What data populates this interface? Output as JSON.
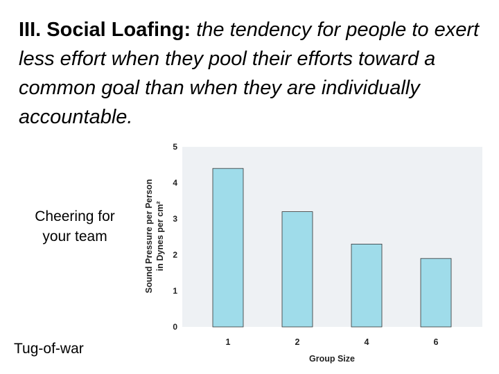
{
  "slide": {
    "title_lead": "III. Social Loafing:",
    "title_definition": "the tendency for people to exert less effort when they pool their efforts toward a common goal than when they are individually accountable.",
    "label_cheering": "Cheering for your team",
    "label_tug": "Tug-of-war"
  },
  "colors": {
    "bar_fill": "#9fdcea",
    "bar_stroke": "#333333",
    "plot_background": "#eef1f4"
  },
  "chart_data": {
    "type": "bar",
    "categories": [
      "1",
      "2",
      "4",
      "6"
    ],
    "values": [
      4.4,
      3.2,
      2.3,
      1.9
    ],
    "xlabel": "Group Size",
    "ylabel_line1": "Sound Pressure per Person",
    "ylabel_line2": "in Dynes per cm²",
    "ylim": [
      0,
      5
    ],
    "yticks": [
      0,
      1,
      2,
      3,
      4,
      5
    ],
    "grid": false
  }
}
